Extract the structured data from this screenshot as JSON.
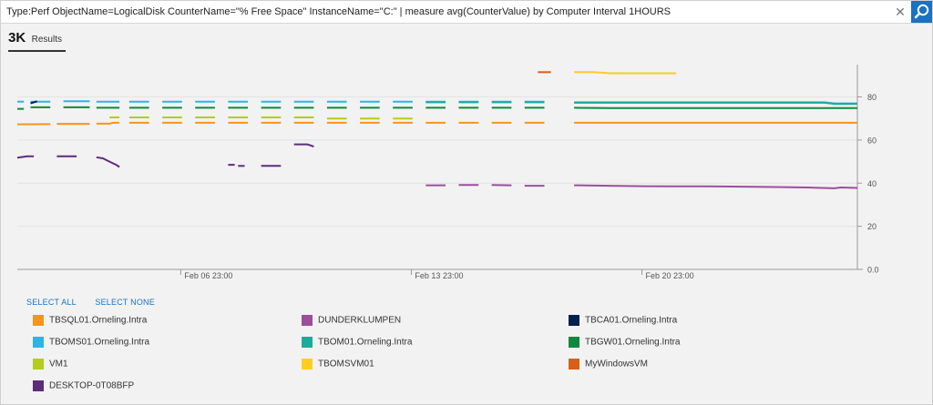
{
  "search": {
    "query": "Type:Perf ObjectName=LogicalDisk CounterName=\"% Free Space\" InstanceName=\"C:\" | measure avg(CounterValue) by Computer Interval 1HOURS",
    "clear_symbol": "✕"
  },
  "results": {
    "count": "3K",
    "label": "Results"
  },
  "legend_actions": {
    "select_all": "SELECT ALL",
    "select_none": "SELECT NONE"
  },
  "legend": [
    {
      "name": "TBSQL01.Orneling.Intra",
      "color": "#f7941d"
    },
    {
      "name": "DUNDERKLUMPEN",
      "color": "#9b4f9b"
    },
    {
      "name": "TBCA01.Orneling.Intra",
      "color": "#002050"
    },
    {
      "name": "TBOMS01.Orneling.Intra",
      "color": "#2fb3e3"
    },
    {
      "name": "TBOM01.Orneling.Intra",
      "color": "#1ea99a"
    },
    {
      "name": "TBGW01.Orneling.Intra",
      "color": "#10893e"
    },
    {
      "name": "VM1",
      "color": "#b4cc1e"
    },
    {
      "name": "TBOMSVM01",
      "color": "#ffcc22"
    },
    {
      "name": "MyWindowsVM",
      "color": "#d85f16"
    },
    {
      "name": "DESKTOP-0T08BFP",
      "color": "#5c2d7a"
    }
  ],
  "chart_data": {
    "type": "line",
    "x_axis": {
      "ticks": [
        "Feb 06 23:00",
        "Feb 13 23:00",
        "Feb 20 23:00"
      ],
      "range_days": [
        2.0,
        27.5
      ],
      "tick_days": [
        6.96,
        13.96,
        20.96
      ]
    },
    "y_axis": {
      "ticks": [
        "0.0",
        "20",
        "40",
        "60",
        "80"
      ],
      "range": [
        0,
        95
      ],
      "tick_values": [
        0,
        20,
        40,
        60,
        80
      ]
    },
    "grid": true,
    "series": [
      {
        "name": "TBSQL01.Orneling.Intra",
        "color": "#f7941d",
        "segments": [
          [
            [
              2.0,
              67.3
            ],
            [
              3.0,
              67.4
            ]
          ],
          [
            [
              3.2,
              67.5
            ],
            [
              4.2,
              67.5
            ]
          ],
          [
            [
              4.4,
              67.6
            ],
            [
              4.8,
              67.6
            ],
            [
              4.9,
              68.0
            ],
            [
              5.1,
              68.0
            ]
          ],
          [
            [
              5.4,
              68.0
            ],
            [
              6.0,
              68.0
            ]
          ],
          [
            [
              6.4,
              68.0
            ],
            [
              7.0,
              68.0
            ]
          ],
          [
            [
              7.4,
              68.0
            ],
            [
              8.0,
              68.0
            ]
          ],
          [
            [
              8.4,
              68.0
            ],
            [
              9.0,
              68.0
            ]
          ],
          [
            [
              9.4,
              68.0
            ],
            [
              10.0,
              68.0
            ]
          ],
          [
            [
              10.4,
              68.0
            ],
            [
              11.0,
              68.0
            ]
          ],
          [
            [
              11.4,
              68.0
            ],
            [
              12.0,
              68.0
            ]
          ],
          [
            [
              12.4,
              68.0
            ],
            [
              13.0,
              68.0
            ]
          ],
          [
            [
              13.4,
              68.0
            ],
            [
              14.0,
              68.0
            ]
          ],
          [
            [
              14.4,
              68.0
            ],
            [
              15.0,
              68.0
            ]
          ],
          [
            [
              15.4,
              68.0
            ],
            [
              16.0,
              68.0
            ]
          ],
          [
            [
              16.4,
              68.0
            ],
            [
              17.0,
              68.0
            ]
          ],
          [
            [
              17.4,
              68.0
            ],
            [
              18.0,
              68.0
            ]
          ],
          [
            [
              18.9,
              68.0
            ],
            [
              27.5,
              68.0
            ]
          ]
        ]
      },
      {
        "name": "DUNDERKLUMPEN",
        "color": "#9b4f9b",
        "segments": [
          [
            [
              14.4,
              39.0
            ],
            [
              15.0,
              39.0
            ]
          ],
          [
            [
              15.4,
              39.2
            ],
            [
              16.0,
              39.2
            ]
          ],
          [
            [
              16.4,
              39.2
            ],
            [
              17.0,
              39.0
            ]
          ],
          [
            [
              17.4,
              38.8
            ],
            [
              18.0,
              38.8
            ]
          ],
          [
            [
              18.9,
              39.0
            ],
            [
              20.0,
              38.8
            ],
            [
              21.0,
              38.6
            ],
            [
              22.0,
              38.5
            ],
            [
              23.0,
              38.5
            ],
            [
              24.0,
              38.4
            ],
            [
              25.0,
              38.2
            ],
            [
              26.0,
              38.0
            ],
            [
              26.8,
              37.6
            ],
            [
              27.0,
              38.0
            ],
            [
              27.5,
              37.8
            ]
          ]
        ]
      },
      {
        "name": "TBOMS01.Orneling.Intra",
        "color": "#2fb3e3",
        "segments": [
          [
            [
              2.0,
              77.8
            ],
            [
              2.2,
              77.8
            ]
          ],
          [
            [
              2.4,
              77.8
            ],
            [
              3.0,
              77.8
            ]
          ],
          [
            [
              3.4,
              78.0
            ],
            [
              4.2,
              78.0
            ]
          ],
          [
            [
              4.4,
              77.8
            ],
            [
              5.1,
              77.8
            ]
          ],
          [
            [
              5.4,
              77.8
            ],
            [
              6.0,
              77.8
            ]
          ],
          [
            [
              6.4,
              77.8
            ],
            [
              7.0,
              77.8
            ]
          ],
          [
            [
              7.4,
              77.8
            ],
            [
              8.0,
              77.8
            ]
          ],
          [
            [
              8.4,
              77.8
            ],
            [
              9.0,
              77.8
            ]
          ],
          [
            [
              9.4,
              77.8
            ],
            [
              10.0,
              77.8
            ]
          ],
          [
            [
              10.4,
              77.8
            ],
            [
              11.0,
              77.8
            ]
          ],
          [
            [
              11.4,
              77.8
            ],
            [
              12.0,
              77.8
            ]
          ],
          [
            [
              12.4,
              77.8
            ],
            [
              13.0,
              77.8
            ]
          ],
          [
            [
              13.4,
              77.8
            ],
            [
              14.0,
              77.8
            ]
          ],
          [
            [
              14.4,
              77.8
            ],
            [
              15.0,
              77.8
            ]
          ],
          [
            [
              15.4,
              77.8
            ],
            [
              16.0,
              77.8
            ]
          ],
          [
            [
              16.4,
              77.8
            ],
            [
              17.0,
              77.8
            ]
          ],
          [
            [
              17.4,
              77.8
            ],
            [
              18.0,
              77.8
            ]
          ],
          [
            [
              18.9,
              77.5
            ],
            [
              26.5,
              77.5
            ],
            [
              26.8,
              77.0
            ],
            [
              27.5,
              77.0
            ]
          ]
        ]
      },
      {
        "name": "TBOM01.Orneling.Intra",
        "color": "#1ea99a",
        "segments": [
          [
            [
              14.4,
              77.5
            ],
            [
              15.0,
              77.5
            ]
          ],
          [
            [
              15.4,
              77.5
            ],
            [
              16.0,
              77.5
            ]
          ],
          [
            [
              16.4,
              77.5
            ],
            [
              17.0,
              77.5
            ]
          ],
          [
            [
              17.4,
              77.5
            ],
            [
              18.0,
              77.5
            ]
          ],
          [
            [
              18.9,
              77.3
            ],
            [
              26.5,
              77.3
            ],
            [
              26.8,
              76.8
            ],
            [
              27.5,
              76.8
            ]
          ]
        ]
      },
      {
        "name": "TBGW01.Orneling.Intra",
        "color": "#10893e",
        "segments": [
          [
            [
              2.0,
              74.5
            ],
            [
              2.2,
              74.5
            ]
          ],
          [
            [
              2.4,
              75.2
            ],
            [
              3.0,
              75.2
            ]
          ],
          [
            [
              3.4,
              75.2
            ],
            [
              4.2,
              75.2
            ]
          ],
          [
            [
              4.4,
              75.0
            ],
            [
              5.1,
              75.0
            ]
          ],
          [
            [
              5.4,
              75.0
            ],
            [
              6.0,
              75.0
            ]
          ],
          [
            [
              6.4,
              75.0
            ],
            [
              7.0,
              75.0
            ]
          ],
          [
            [
              7.4,
              75.0
            ],
            [
              8.0,
              75.0
            ]
          ],
          [
            [
              8.4,
              75.0
            ],
            [
              9.0,
              75.0
            ]
          ],
          [
            [
              9.4,
              75.0
            ],
            [
              10.0,
              75.0
            ]
          ],
          [
            [
              10.4,
              75.0
            ],
            [
              11.0,
              75.0
            ]
          ],
          [
            [
              11.4,
              75.0
            ],
            [
              12.0,
              75.0
            ]
          ],
          [
            [
              12.4,
              75.0
            ],
            [
              13.0,
              75.0
            ]
          ],
          [
            [
              13.4,
              75.0
            ],
            [
              14.0,
              75.0
            ]
          ],
          [
            [
              14.4,
              75.0
            ],
            [
              15.0,
              75.0
            ]
          ],
          [
            [
              15.4,
              75.0
            ],
            [
              16.0,
              75.0
            ]
          ],
          [
            [
              16.4,
              75.0
            ],
            [
              17.0,
              75.0
            ]
          ],
          [
            [
              17.4,
              75.0
            ],
            [
              18.0,
              75.0
            ]
          ],
          [
            [
              18.9,
              75.0
            ],
            [
              20.0,
              74.8
            ],
            [
              27.5,
              74.8
            ]
          ]
        ]
      },
      {
        "name": "TBCA01.Orneling.Intra",
        "color": "#002050",
        "segments": [
          [
            [
              2.4,
              77.0
            ],
            [
              2.6,
              78.0
            ]
          ]
        ]
      },
      {
        "name": "VM1",
        "color": "#b4cc1e",
        "segments": [
          [
            [
              4.8,
              70.5
            ],
            [
              5.1,
              70.5
            ]
          ],
          [
            [
              5.4,
              70.5
            ],
            [
              6.0,
              70.5
            ]
          ],
          [
            [
              6.4,
              70.5
            ],
            [
              7.0,
              70.5
            ]
          ],
          [
            [
              7.4,
              70.5
            ],
            [
              8.0,
              70.5
            ]
          ],
          [
            [
              8.4,
              70.5
            ],
            [
              9.0,
              70.5
            ]
          ],
          [
            [
              9.4,
              70.5
            ],
            [
              10.0,
              70.5
            ]
          ],
          [
            [
              10.4,
              70.5
            ],
            [
              11.0,
              70.5
            ]
          ],
          [
            [
              11.4,
              70.0
            ],
            [
              12.0,
              70.0
            ]
          ],
          [
            [
              12.4,
              70.0
            ],
            [
              13.0,
              70.0
            ]
          ],
          [
            [
              13.4,
              70.0
            ],
            [
              14.0,
              70.0
            ]
          ]
        ]
      },
      {
        "name": "TBOMSVM01",
        "color": "#ffcc22",
        "segments": [
          [
            [
              18.9,
              91.5
            ],
            [
              19.5,
              91.5
            ],
            [
              20.0,
              91.0
            ],
            [
              22.0,
              91.0
            ]
          ]
        ]
      },
      {
        "name": "MyWindowsVM",
        "color": "#d85f16",
        "segments": [
          [
            [
              17.8,
              91.5
            ],
            [
              18.2,
              91.5
            ]
          ]
        ]
      },
      {
        "name": "DESKTOP-0T08BFP",
        "color": "#5c2d7a",
        "segments": [
          [
            [
              2.0,
              51.8
            ],
            [
              2.3,
              52.5
            ],
            [
              2.5,
              52.5
            ]
          ],
          [
            [
              3.2,
              52.5
            ],
            [
              3.8,
              52.5
            ]
          ],
          [
            [
              4.4,
              52.0
            ],
            [
              4.6,
              51.5
            ],
            [
              4.8,
              50.0
            ],
            [
              5.0,
              48.5
            ],
            [
              5.1,
              47.5
            ]
          ],
          [
            [
              8.4,
              48.5
            ],
            [
              8.6,
              48.5
            ]
          ],
          [
            [
              8.7,
              48.0
            ],
            [
              8.9,
              48.0
            ]
          ],
          [
            [
              9.4,
              48.0
            ],
            [
              10.0,
              48.0
            ]
          ],
          [
            [
              10.4,
              58.0
            ],
            [
              10.8,
              58.0
            ],
            [
              11.0,
              57.0
            ]
          ]
        ]
      }
    ]
  }
}
